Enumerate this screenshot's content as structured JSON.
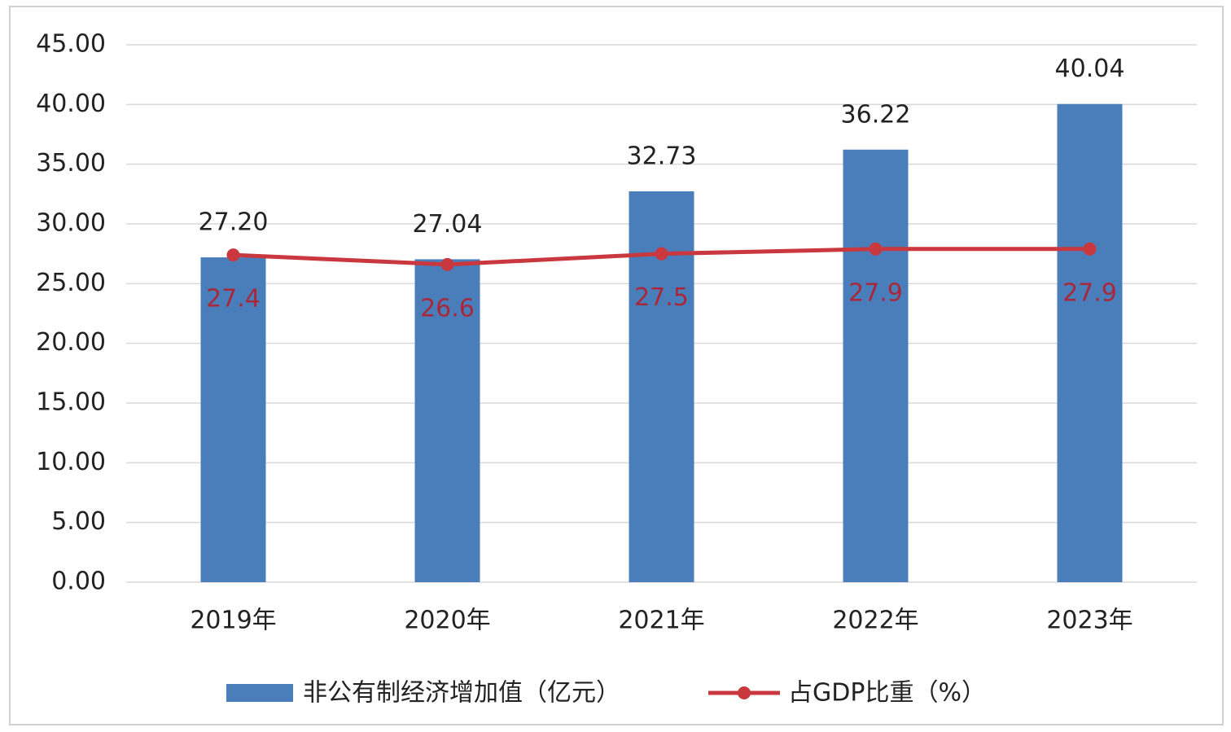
{
  "chart_data": {
    "type": "bar",
    "categories": [
      "2019年",
      "2020年",
      "2021年",
      "2022年",
      "2023年"
    ],
    "series": [
      {
        "name": "非公有制经济增加值（亿元）",
        "type": "bar",
        "color": "#4a7ebb",
        "values": [
          27.2,
          27.04,
          32.73,
          36.22,
          40.04
        ],
        "value_labels": [
          "27.20",
          "27.04",
          "32.73",
          "36.22",
          "40.04"
        ]
      },
      {
        "name": "占GDP比重（%）",
        "type": "line",
        "color": "#c9383e",
        "values": [
          27.4,
          26.6,
          27.5,
          27.9,
          27.9
        ]
      }
    ],
    "ylim": [
      0,
      45
    ],
    "yticks": [
      {
        "value": 0,
        "label": "0.00"
      },
      {
        "value": 5,
        "label": "5.00"
      },
      {
        "value": 10,
        "label": "10.00"
      },
      {
        "value": 15,
        "label": "15.00"
      },
      {
        "value": 20,
        "label": "20.00"
      },
      {
        "value": 25,
        "label": "25.00"
      },
      {
        "value": 30,
        "label": "30.00"
      },
      {
        "value": 35,
        "label": "35.00"
      },
      {
        "value": 40,
        "label": "40.00"
      },
      {
        "value": 45,
        "label": "45.00"
      }
    ],
    "grid": true
  }
}
